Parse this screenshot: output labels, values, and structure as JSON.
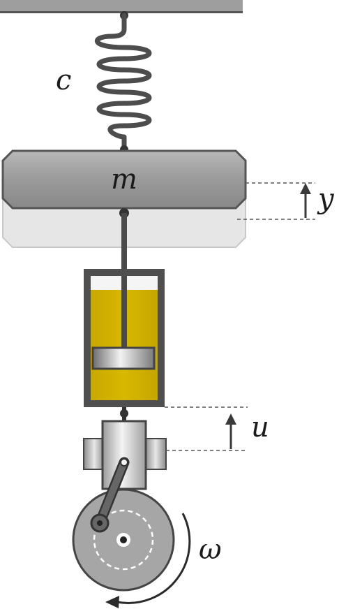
{
  "labels": {
    "spring": "c",
    "mass": "m",
    "mass_displacement": "y",
    "base_displacement": "u",
    "angular_velocity": "ω"
  },
  "colors": {
    "spring": "#4d4d4d",
    "mass_fill": "#8c8c8c",
    "mass_shadow": "#e3e3e3",
    "fluid": "#cdae00",
    "cylinder_wall": "#4f4f4f",
    "piston": "#b5b5b5",
    "wheel": "#a6a6a6",
    "crank": "#555555",
    "dashed_line": "#555555",
    "arrow": "#3a3a3a"
  }
}
